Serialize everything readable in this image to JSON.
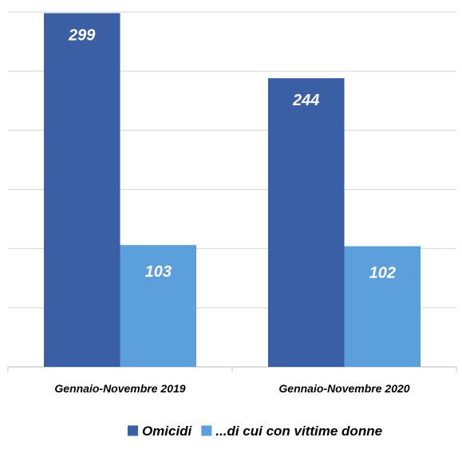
{
  "chart_data": {
    "type": "bar",
    "categories": [
      "Gennaio-Novembre 2019",
      "Gennaio-Novembre 2020"
    ],
    "series": [
      {
        "name": "Omicidi",
        "values": [
          299,
          244
        ],
        "color": "#3a5fa5"
      },
      {
        "name": "...di cui con vittime donne",
        "values": [
          103,
          102
        ],
        "color": "#5b9fdc"
      }
    ],
    "ylim": [
      0,
      300
    ],
    "grid": true,
    "legend": "bottom",
    "data_labels": true
  }
}
